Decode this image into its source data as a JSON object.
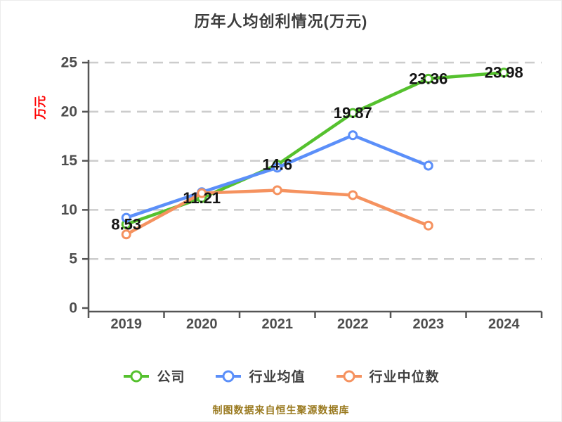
{
  "title": "历年人均创利情况(万元)",
  "y_axis_label": "万元",
  "footer": "制图数据来自恒生聚源数据库",
  "colors": {
    "company": "#55c12e",
    "industry_avg": "#5b8ff9",
    "industry_median": "#f5925f",
    "title_text": "#3d3d3d",
    "axis_line": "#555555",
    "tick_text": "#4d4d4d",
    "gridline": "#cccccc",
    "data_label_text": "#141414",
    "y_unit_red": "#ff0000",
    "footer_text": "#9a7a20",
    "marker_fill": "#ffffff"
  },
  "chart_data": {
    "type": "line",
    "title": "历年人均创利情况(万元)",
    "categories": [
      "2019",
      "2020",
      "2021",
      "2022",
      "2023",
      "2024"
    ],
    "series": [
      {
        "name": "公司",
        "color": "#55c12e",
        "values": [
          8.53,
          11.21,
          14.6,
          19.87,
          23.36,
          23.98
        ],
        "point_labels": [
          "8.53",
          "11.21",
          "14.6",
          "19.87",
          "23.36",
          "23.98"
        ]
      },
      {
        "name": "行业均值",
        "color": "#5b8ff9",
        "values": [
          9.2,
          11.8,
          14.3,
          17.6,
          14.5
        ],
        "point_labels": []
      },
      {
        "name": "行业中位数",
        "color": "#f5925f",
        "values": [
          7.5,
          11.7,
          12.0,
          11.5,
          8.4
        ],
        "point_labels": []
      }
    ],
    "ylim": [
      0,
      25
    ],
    "yticks": [
      0,
      5,
      10,
      15,
      20,
      25
    ],
    "xlabel": "",
    "ylabel": "万元",
    "grid": "horizontal-dashed",
    "legend_position": "bottom"
  }
}
